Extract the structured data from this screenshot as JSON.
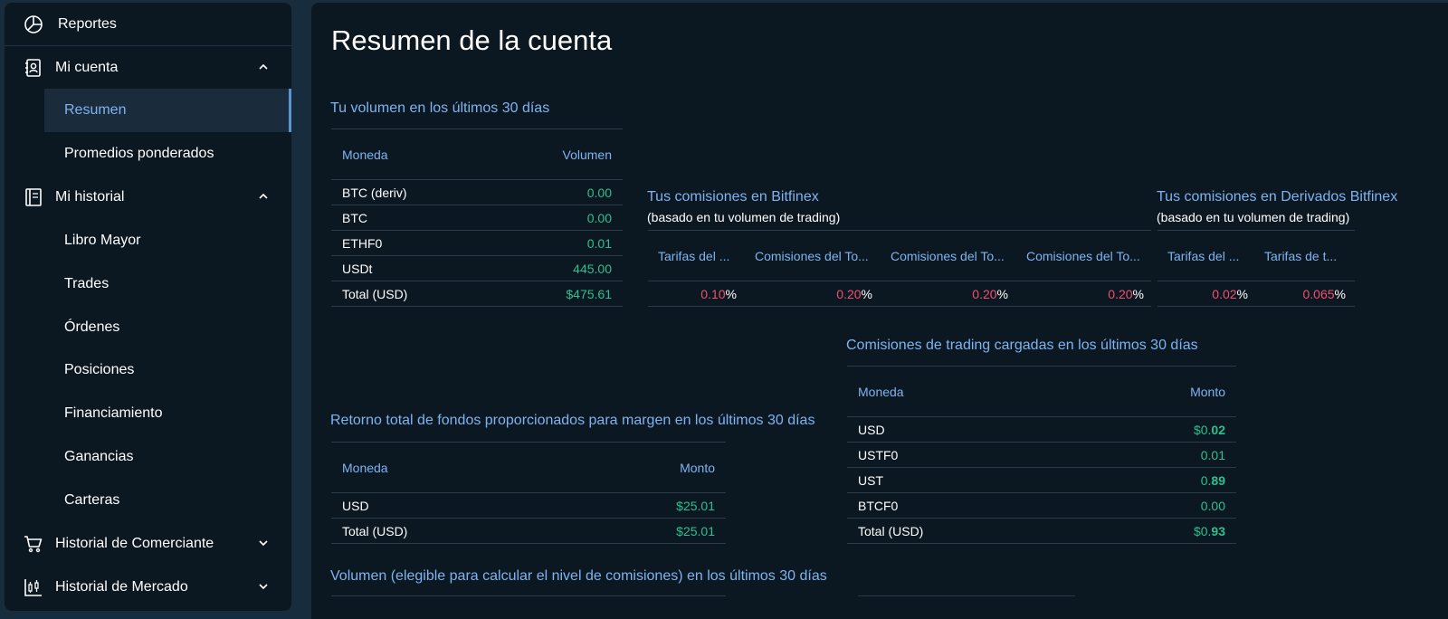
{
  "sidebar": {
    "reports": "Reportes",
    "my_account": "Mi cuenta",
    "summary": "Resumen",
    "weighted_averages": "Promedios ponderados",
    "my_history": "Mi historial",
    "ledger": "Libro Mayor",
    "trades": "Trades",
    "orders": "Órdenes",
    "positions": "Posiciones",
    "funding": "Financiamiento",
    "earnings": "Ganancias",
    "wallets": "Carteras",
    "merchant_history": "Historial de Comerciante",
    "market_history": "Historial de Mercado"
  },
  "main": {
    "title": "Resumen de la cuenta",
    "volume": {
      "title": "Tu volumen en los últimos 30 días",
      "col_currency": "Moneda",
      "col_volume": "Volumen",
      "rows": [
        {
          "currency": "BTC (deriv)",
          "value": "0.00"
        },
        {
          "currency": "BTC",
          "value": "0.00"
        },
        {
          "currency": "ETHF0",
          "value": "0.01"
        },
        {
          "currency": "USDt",
          "value": "445.00"
        },
        {
          "currency": "Total (USD)",
          "value": "$475.61"
        }
      ]
    },
    "bitfinex_fees": {
      "title": "Tus comisiones en Bitfinex",
      "subtitle": "(basado en tu volumen de trading)",
      "headers": [
        "Tarifas del ...",
        "Comisiones del To...",
        "Comisiones del To...",
        "Comisiones del To..."
      ],
      "values": [
        "0.10",
        "0.20",
        "0.20",
        "0.20"
      ],
      "pct": "%"
    },
    "deriv_fees": {
      "title": "Tus comisiones en Derivados Bitfinex",
      "subtitle": "(basado en tu volumen de trading)",
      "headers": [
        "Tarifas del ...",
        "Tarifas de t..."
      ],
      "values": [
        "0.02",
        "0.065"
      ],
      "pct": "%"
    },
    "trading_fees": {
      "title": "Comisiones de trading cargadas en los últimos 30 días",
      "col_currency": "Moneda",
      "col_amount": "Monto",
      "rows": [
        {
          "currency": "USD",
          "prefix": "$0.",
          "value": "02"
        },
        {
          "currency": "USTF0",
          "prefix": "0.",
          "value": "01"
        },
        {
          "currency": "UST",
          "prefix": "0.",
          "value": "89"
        },
        {
          "currency": "BTCF0",
          "prefix": "0.",
          "value": "00"
        },
        {
          "currency": "Total (USD)",
          "prefix": "$0.",
          "value": "93"
        }
      ]
    },
    "margin_return": {
      "title": "Retorno total de fondos proporcionados para margen en los últimos 30 días",
      "col_currency": "Moneda",
      "col_amount": "Monto",
      "rows": [
        {
          "currency": "USD",
          "value": "$25.01"
        },
        {
          "currency": "Total (USD)",
          "value": "$25.01"
        }
      ]
    },
    "eligible_volume": {
      "title": "Volumen (elegible para calcular el nivel de comisiones) en los últimos 30 días"
    }
  },
  "colors": {
    "background": "#0c1821",
    "accent_blue": "#7fb3f0",
    "positive_green": "#2bc08f",
    "fee_red": "#f0506e"
  }
}
